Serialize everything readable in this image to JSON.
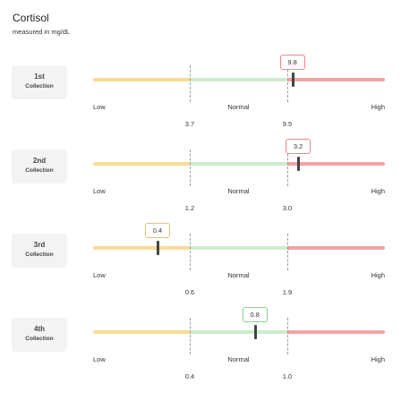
{
  "header": {
    "title": "Cortisol",
    "subtitle": "measured in mg/dL"
  },
  "scale_labels": {
    "low": "Low",
    "normal": "Normal",
    "high": "High"
  },
  "colors": {
    "low": "#f8dc95",
    "normal": "#cdeccd",
    "high": "#f2a3a5"
  },
  "collections": [
    {
      "number": "1st",
      "sub": "Collection",
      "value": "9.8",
      "low_threshold": "3.7",
      "high_threshold": "9.5",
      "status": "high"
    },
    {
      "number": "2nd",
      "sub": "Collection",
      "value": "3.2",
      "low_threshold": "1.2",
      "high_threshold": "3.0",
      "status": "high"
    },
    {
      "number": "3rd",
      "sub": "Collection",
      "value": "0.4",
      "low_threshold": "0.6",
      "high_threshold": "1.9",
      "status": "low"
    },
    {
      "number": "4th",
      "sub": "Collection",
      "value": "0.8",
      "low_threshold": "0.4",
      "high_threshold": "1.0",
      "status": "normal"
    }
  ]
}
